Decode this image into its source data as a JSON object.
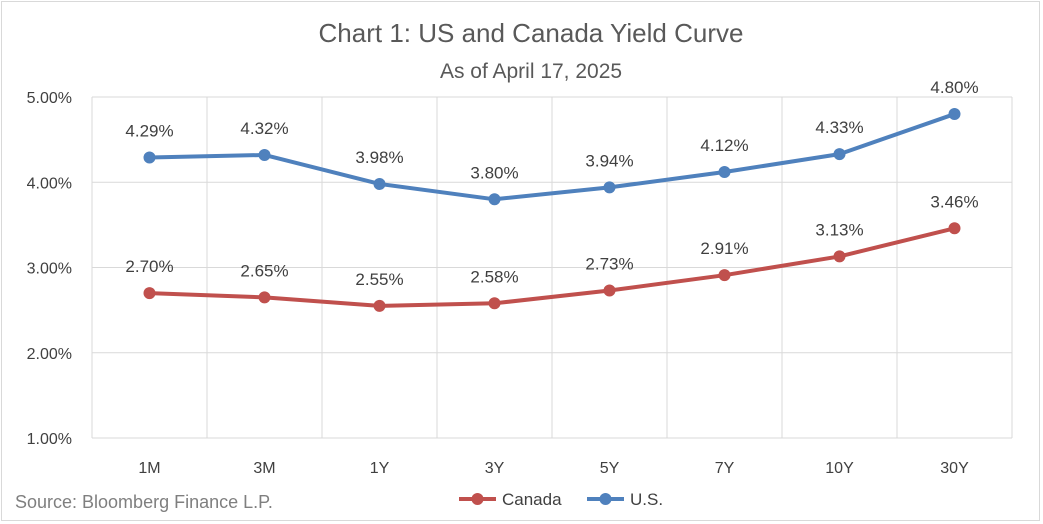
{
  "chart_data": {
    "type": "line",
    "title": "Chart 1: US and Canada Yield Curve",
    "subtitle": "As of April 17, 2025",
    "categories": [
      "1M",
      "3M",
      "1Y",
      "3Y",
      "5Y",
      "7Y",
      "10Y",
      "30Y"
    ],
    "series": [
      {
        "name": "Canada",
        "color": "#c0504d",
        "values": [
          2.7,
          2.65,
          2.55,
          2.58,
          2.73,
          2.91,
          3.13,
          3.46
        ],
        "labels": [
          "2.70%",
          "2.65%",
          "2.55%",
          "2.58%",
          "2.73%",
          "2.91%",
          "3.13%",
          "3.46%"
        ]
      },
      {
        "name": "U.S.",
        "color": "#4f81bd",
        "values": [
          4.29,
          4.32,
          3.98,
          3.8,
          3.94,
          4.12,
          4.33,
          4.8
        ],
        "labels": [
          "4.29%",
          "4.32%",
          "3.98%",
          "3.80%",
          "3.94%",
          "4.12%",
          "4.33%",
          "4.80%"
        ]
      }
    ],
    "ylim": [
      1.0,
      5.0
    ],
    "yticks": [
      "1.00%",
      "2.00%",
      "3.00%",
      "4.00%",
      "5.00%"
    ],
    "grid": true,
    "legend": "bottom",
    "source": "Source: Bloomberg Finance L.P."
  }
}
